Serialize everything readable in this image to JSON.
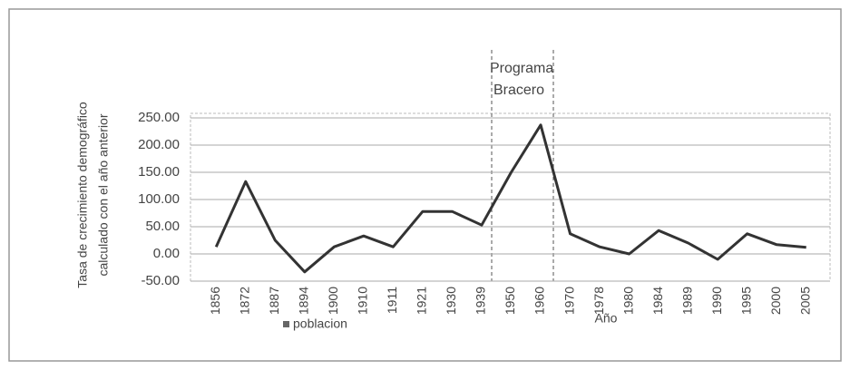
{
  "chart_data": {
    "type": "line",
    "y_label": [
      "Tasa de crecimiento demográfico",
      "calculado con el año anterior"
    ],
    "x_label": "Año",
    "annotation": [
      "Programa",
      "Bracero"
    ],
    "categories": [
      "1856",
      "1872",
      "1887",
      "1894",
      "1900",
      "1910",
      "1911",
      "1921",
      "1930",
      "1939",
      "1950",
      "1960",
      "1970",
      "1978",
      "1980",
      "1984",
      "1989",
      "1990",
      "1995",
      "2000",
      "2005"
    ],
    "series": [
      {
        "name": "poblacion",
        "color": "#333333",
        "values": [
          13,
          133,
          25,
          -33,
          13,
          33,
          13,
          78,
          78,
          53,
          150,
          237,
          37,
          13,
          0,
          43,
          20,
          -10,
          37,
          17,
          12
        ]
      }
    ],
    "ylim": [
      -50,
      250
    ],
    "yticks": [
      {
        "value": -50,
        "label": "-50.00"
      },
      {
        "value": 0,
        "label": "0.00"
      },
      {
        "value": 50,
        "label": "50.00"
      },
      {
        "value": 100,
        "label": "100.00"
      },
      {
        "value": 150,
        "label": "150.00"
      },
      {
        "value": 200,
        "label": "200.00"
      },
      {
        "value": 250,
        "label": "250.00"
      }
    ],
    "grid": true
  }
}
